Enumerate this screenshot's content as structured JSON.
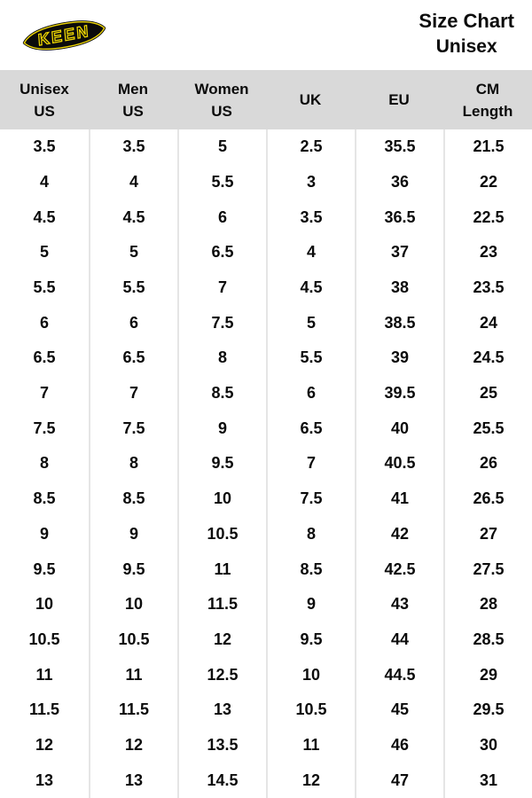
{
  "brand": {
    "logo_text": "KEEN"
  },
  "header": {
    "title_line1": "Size Chart",
    "title_line2": "Unisex"
  },
  "chart_data": {
    "type": "table",
    "title": "Size Chart Unisex",
    "columns": [
      [
        "Unisex",
        "US"
      ],
      [
        "Men",
        "US"
      ],
      [
        "Women",
        "US"
      ],
      [
        "UK",
        ""
      ],
      [
        "EU",
        ""
      ],
      [
        "CM",
        "Length"
      ]
    ],
    "rows": [
      [
        "3.5",
        "3.5",
        "5",
        "2.5",
        "35.5",
        "21.5"
      ],
      [
        "4",
        "4",
        "5.5",
        "3",
        "36",
        "22"
      ],
      [
        "4.5",
        "4.5",
        "6",
        "3.5",
        "36.5",
        "22.5"
      ],
      [
        "5",
        "5",
        "6.5",
        "4",
        "37",
        "23"
      ],
      [
        "5.5",
        "5.5",
        "7",
        "4.5",
        "38",
        "23.5"
      ],
      [
        "6",
        "6",
        "7.5",
        "5",
        "38.5",
        "24"
      ],
      [
        "6.5",
        "6.5",
        "8",
        "5.5",
        "39",
        "24.5"
      ],
      [
        "7",
        "7",
        "8.5",
        "6",
        "39.5",
        "25"
      ],
      [
        "7.5",
        "7.5",
        "9",
        "6.5",
        "40",
        "25.5"
      ],
      [
        "8",
        "8",
        "9.5",
        "7",
        "40.5",
        "26"
      ],
      [
        "8.5",
        "8.5",
        "10",
        "7.5",
        "41",
        "26.5"
      ],
      [
        "9",
        "9",
        "10.5",
        "8",
        "42",
        "27"
      ],
      [
        "9.5",
        "9.5",
        "11",
        "8.5",
        "42.5",
        "27.5"
      ],
      [
        "10",
        "10",
        "11.5",
        "9",
        "43",
        "28"
      ],
      [
        "10.5",
        "10.5",
        "12",
        "9.5",
        "44",
        "28.5"
      ],
      [
        "11",
        "11",
        "12.5",
        "10",
        "44.5",
        "29"
      ],
      [
        "11.5",
        "11.5",
        "13",
        "10.5",
        "45",
        "29.5"
      ],
      [
        "12",
        "12",
        "13.5",
        "11",
        "46",
        "30"
      ],
      [
        "13",
        "13",
        "14.5",
        "12",
        "47",
        "31"
      ]
    ]
  },
  "colors": {
    "header_band": "#d9d9d9",
    "divider": "#e5e5e5",
    "text": "#0b0b0b",
    "logo_yellow": "#eed602",
    "logo_black": "#0b0b0b"
  }
}
